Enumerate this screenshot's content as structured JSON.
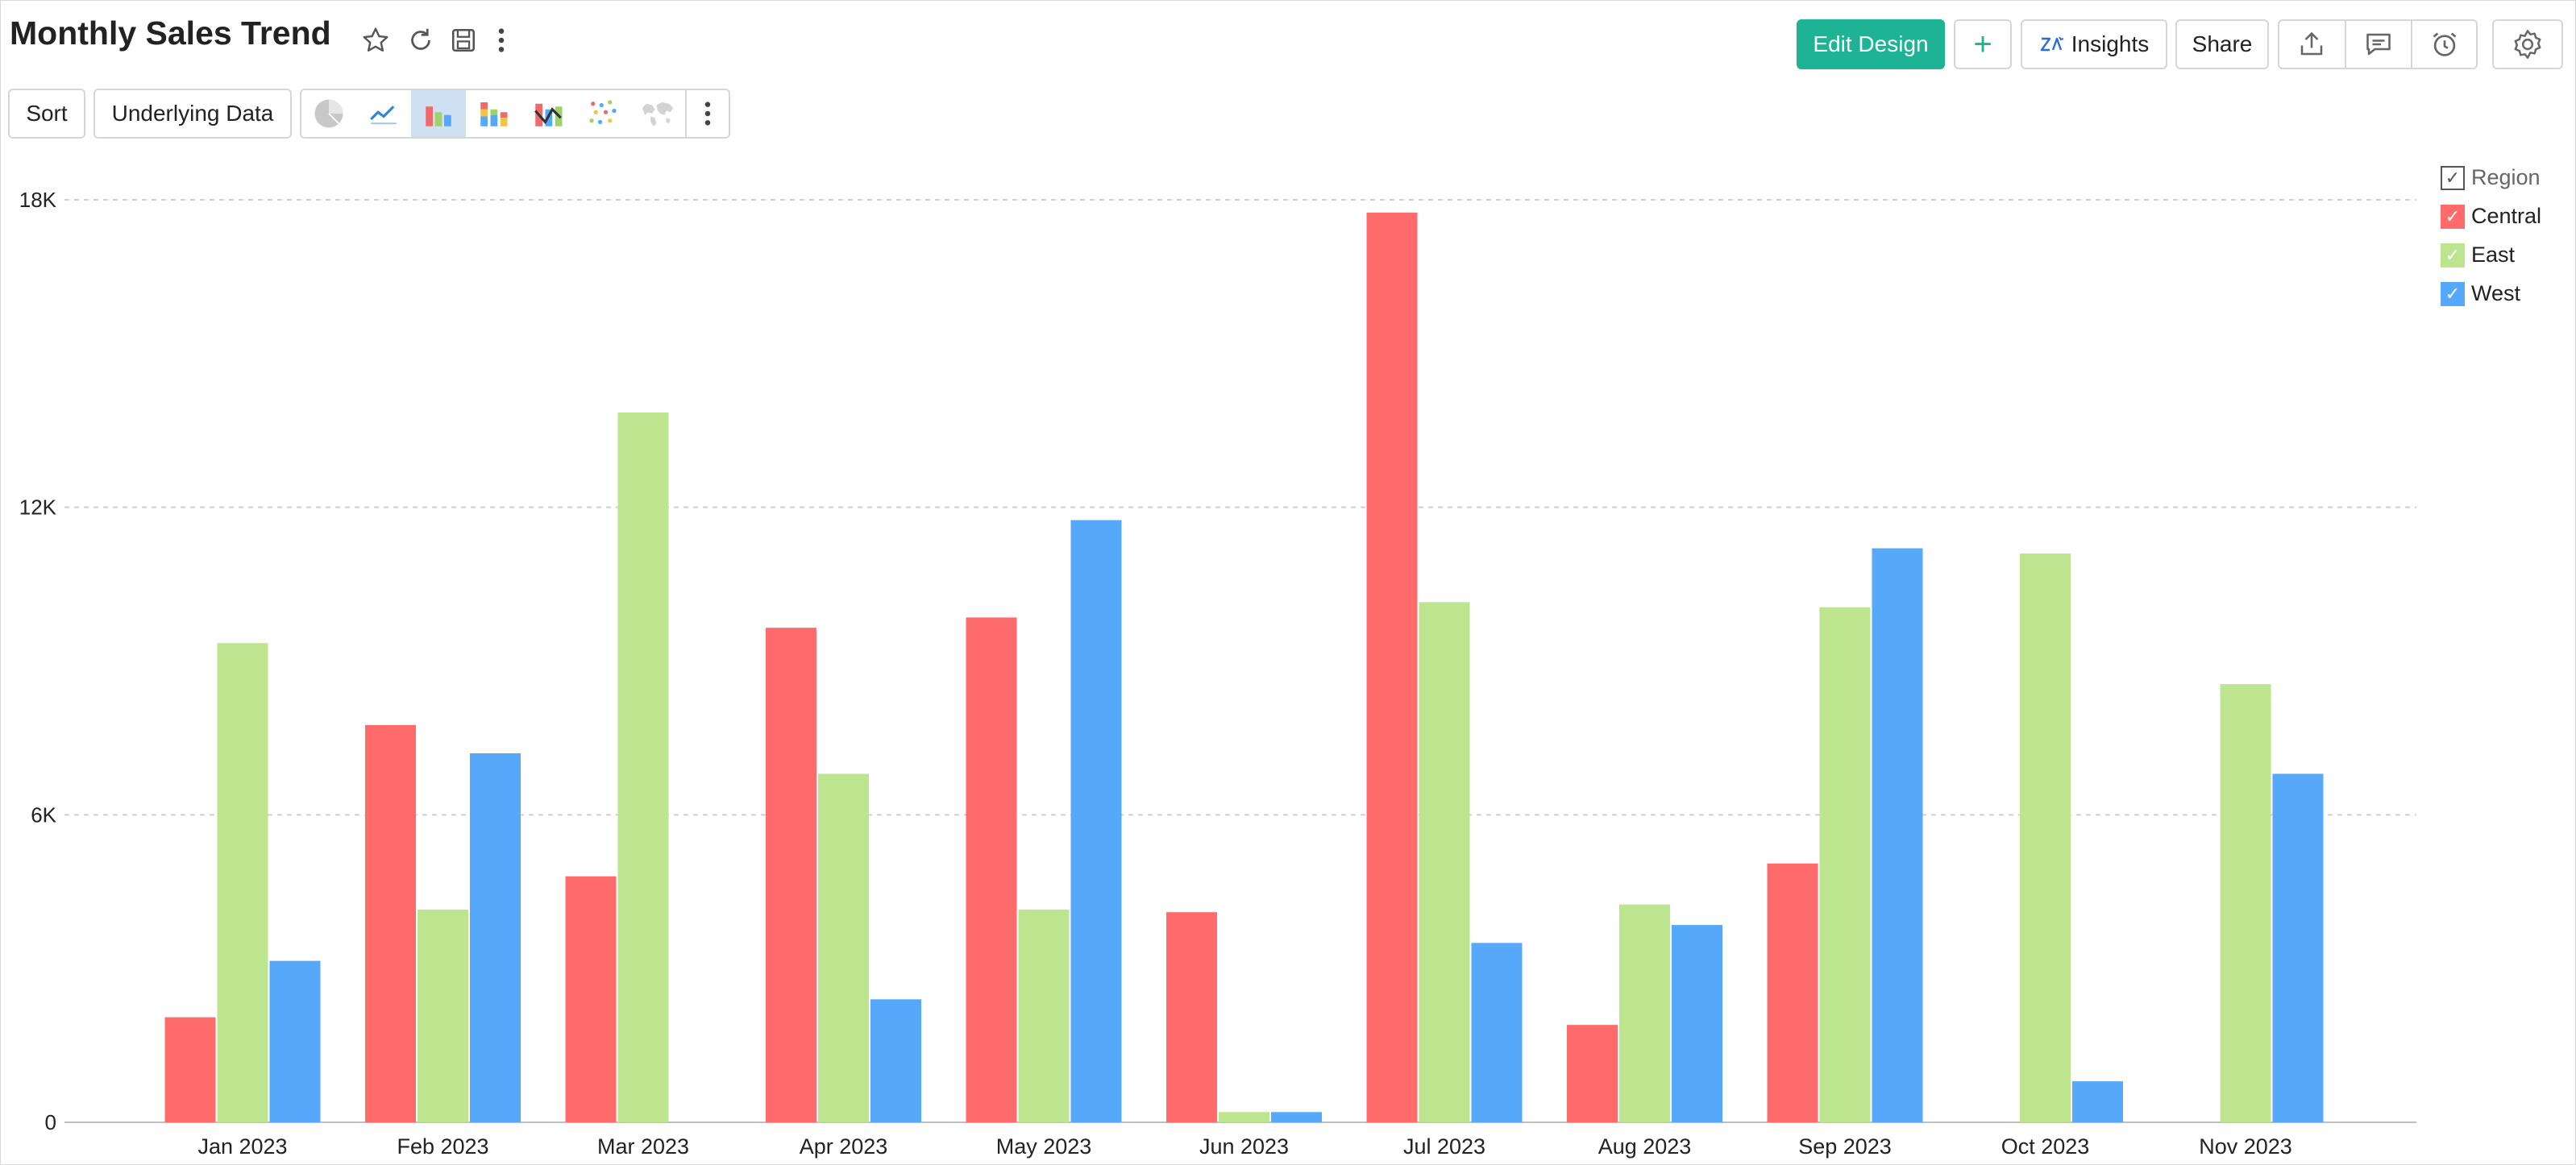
{
  "header": {
    "title": "Monthly Sales Trend",
    "edit_design_label": "Edit Design",
    "add_label": "+",
    "insights_label": "Insights",
    "share_label": "Share"
  },
  "toolbar": {
    "sort_label": "Sort",
    "underlying_data_label": "Underlying Data",
    "chart_types": [
      "pie",
      "line",
      "bar",
      "stacked-bar",
      "combo",
      "scatter",
      "map"
    ],
    "selected_chart_type": "bar"
  },
  "legend": {
    "title": "Region",
    "items": [
      {
        "label": "Central",
        "color": "#ff6b6b"
      },
      {
        "label": "East",
        "color": "#bde58f"
      },
      {
        "label": "West",
        "color": "#56a8fb"
      }
    ]
  },
  "chart_data": {
    "type": "bar",
    "categories": [
      "Jan 2023",
      "Feb 2023",
      "Mar 2023",
      "Apr 2023",
      "May 2023",
      "Jun 2023",
      "Jul 2023",
      "Aug 2023",
      "Sep 2023",
      "Oct 2023",
      "Nov 2023"
    ],
    "series": [
      {
        "name": "Central",
        "color": "#ff6b6b",
        "values": [
          2050,
          7750,
          4800,
          9650,
          9850,
          4100,
          17750,
          1900,
          5050,
          null,
          null
        ]
      },
      {
        "name": "East",
        "color": "#bde58f",
        "values": [
          9350,
          4150,
          13850,
          6800,
          4150,
          200,
          10150,
          4250,
          10050,
          11100,
          8550
        ]
      },
      {
        "name": "West",
        "color": "#56a8fb",
        "values": [
          3150,
          7200,
          null,
          2400,
          11750,
          200,
          3500,
          3850,
          11200,
          800,
          6800
        ]
      }
    ],
    "yticks": [
      "0",
      "6K",
      "12K",
      "18K"
    ],
    "ytick_values": [
      0,
      6000,
      12000,
      18000
    ],
    "ylim": [
      0,
      18000
    ],
    "grid": true,
    "legend_position": "top-right"
  }
}
